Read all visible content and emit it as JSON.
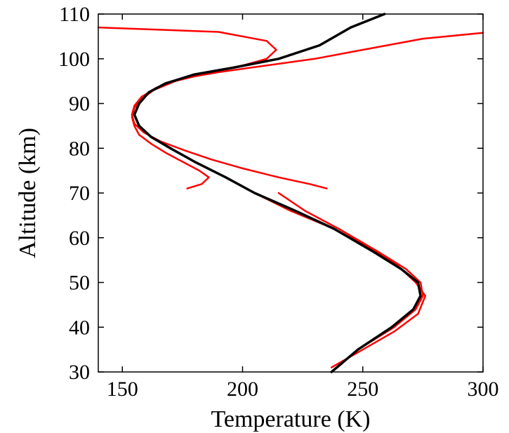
{
  "chart_data": {
    "type": "line",
    "xlabel": "Temperature (K)",
    "ylabel": "Altitude (km)",
    "xlim": [
      140,
      300
    ],
    "ylim": [
      30,
      110
    ],
    "xticks": [
      150,
      200,
      250,
      300
    ],
    "yticks": [
      30,
      40,
      50,
      60,
      70,
      80,
      90,
      100,
      110
    ],
    "grid": false,
    "legend": "none",
    "series": [
      {
        "color": "#ff0000",
        "points": [
          [
            237,
            30
          ],
          [
            248,
            35
          ],
          [
            263,
            40
          ],
          [
            272,
            44
          ],
          [
            275,
            47
          ],
          [
            274,
            50
          ],
          [
            268,
            53
          ],
          [
            256,
            57
          ],
          [
            240,
            62
          ],
          [
            226,
            66
          ],
          [
            215,
            70
          ]
        ]
      },
      {
        "color": "#ff0000",
        "points": [
          [
            205,
            70
          ],
          [
            220,
            66
          ],
          [
            238,
            62
          ],
          [
            252,
            58
          ],
          [
            264,
            54
          ],
          [
            272,
            50
          ],
          [
            276,
            47
          ],
          [
            273,
            43
          ],
          [
            263,
            39
          ],
          [
            250,
            35
          ],
          [
            237,
            31
          ]
        ]
      },
      {
        "color": "#ff0000",
        "points": [
          [
            235,
            71
          ],
          [
            228,
            72
          ],
          [
            215,
            73.5
          ],
          [
            200,
            75.5
          ],
          [
            187,
            77.5
          ],
          [
            176,
            79.5
          ],
          [
            166,
            81.5
          ],
          [
            159,
            83.5
          ],
          [
            155,
            85.5
          ],
          [
            154,
            87.5
          ],
          [
            155,
            89.5
          ],
          [
            158,
            91.5
          ],
          [
            164,
            93.5
          ],
          [
            174,
            95.5
          ],
          [
            190,
            97
          ],
          [
            210,
            98.5
          ],
          [
            230,
            100
          ],
          [
            250,
            102
          ],
          [
            275,
            104.5
          ],
          [
            300,
            105.8
          ]
        ]
      },
      {
        "color": "#ff0000",
        "points": [
          [
            177,
            71
          ],
          [
            183,
            72
          ],
          [
            186,
            73.5
          ],
          [
            182,
            75
          ],
          [
            175,
            77
          ],
          [
            168,
            79
          ],
          [
            162,
            81
          ],
          [
            157,
            83
          ],
          [
            155,
            85
          ],
          [
            154,
            87
          ],
          [
            155,
            89
          ],
          [
            158,
            91
          ],
          [
            163,
            93
          ],
          [
            172,
            95
          ],
          [
            187,
            97
          ],
          [
            200,
            98.5
          ],
          [
            210,
            100
          ],
          [
            214,
            102
          ],
          [
            210,
            104
          ],
          [
            190,
            106
          ],
          [
            140,
            107
          ]
        ]
      },
      {
        "color": "#000000",
        "points": [
          [
            237,
            30
          ],
          [
            248,
            35
          ],
          [
            262,
            40
          ],
          [
            271,
            44
          ],
          [
            274,
            47
          ],
          [
            273,
            50
          ],
          [
            266,
            53
          ],
          [
            254,
            57
          ],
          [
            238,
            62
          ],
          [
            222,
            66
          ],
          [
            205,
            70
          ],
          [
            193,
            73.5
          ],
          [
            180,
            77
          ],
          [
            170,
            80
          ],
          [
            162,
            82.5
          ],
          [
            157,
            85
          ],
          [
            155,
            87.5
          ],
          [
            157,
            90
          ],
          [
            161,
            92.5
          ],
          [
            168,
            94.5
          ],
          [
            180,
            96.5
          ],
          [
            196,
            98
          ],
          [
            215,
            100
          ],
          [
            232,
            103
          ],
          [
            245,
            107
          ],
          [
            259,
            110
          ]
        ]
      }
    ]
  }
}
